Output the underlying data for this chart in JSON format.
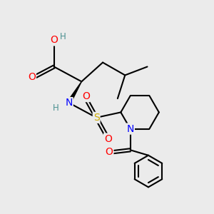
{
  "bg_color": "#ebebeb",
  "bond_color": "#000000",
  "bond_width": 1.5,
  "atom_colors": {
    "O": "#ff0000",
    "N": "#0000ff",
    "S": "#ccaa00",
    "H": "#4a9090",
    "C": "#000000"
  },
  "font_size_atoms": 10,
  "font_size_small": 8.5
}
